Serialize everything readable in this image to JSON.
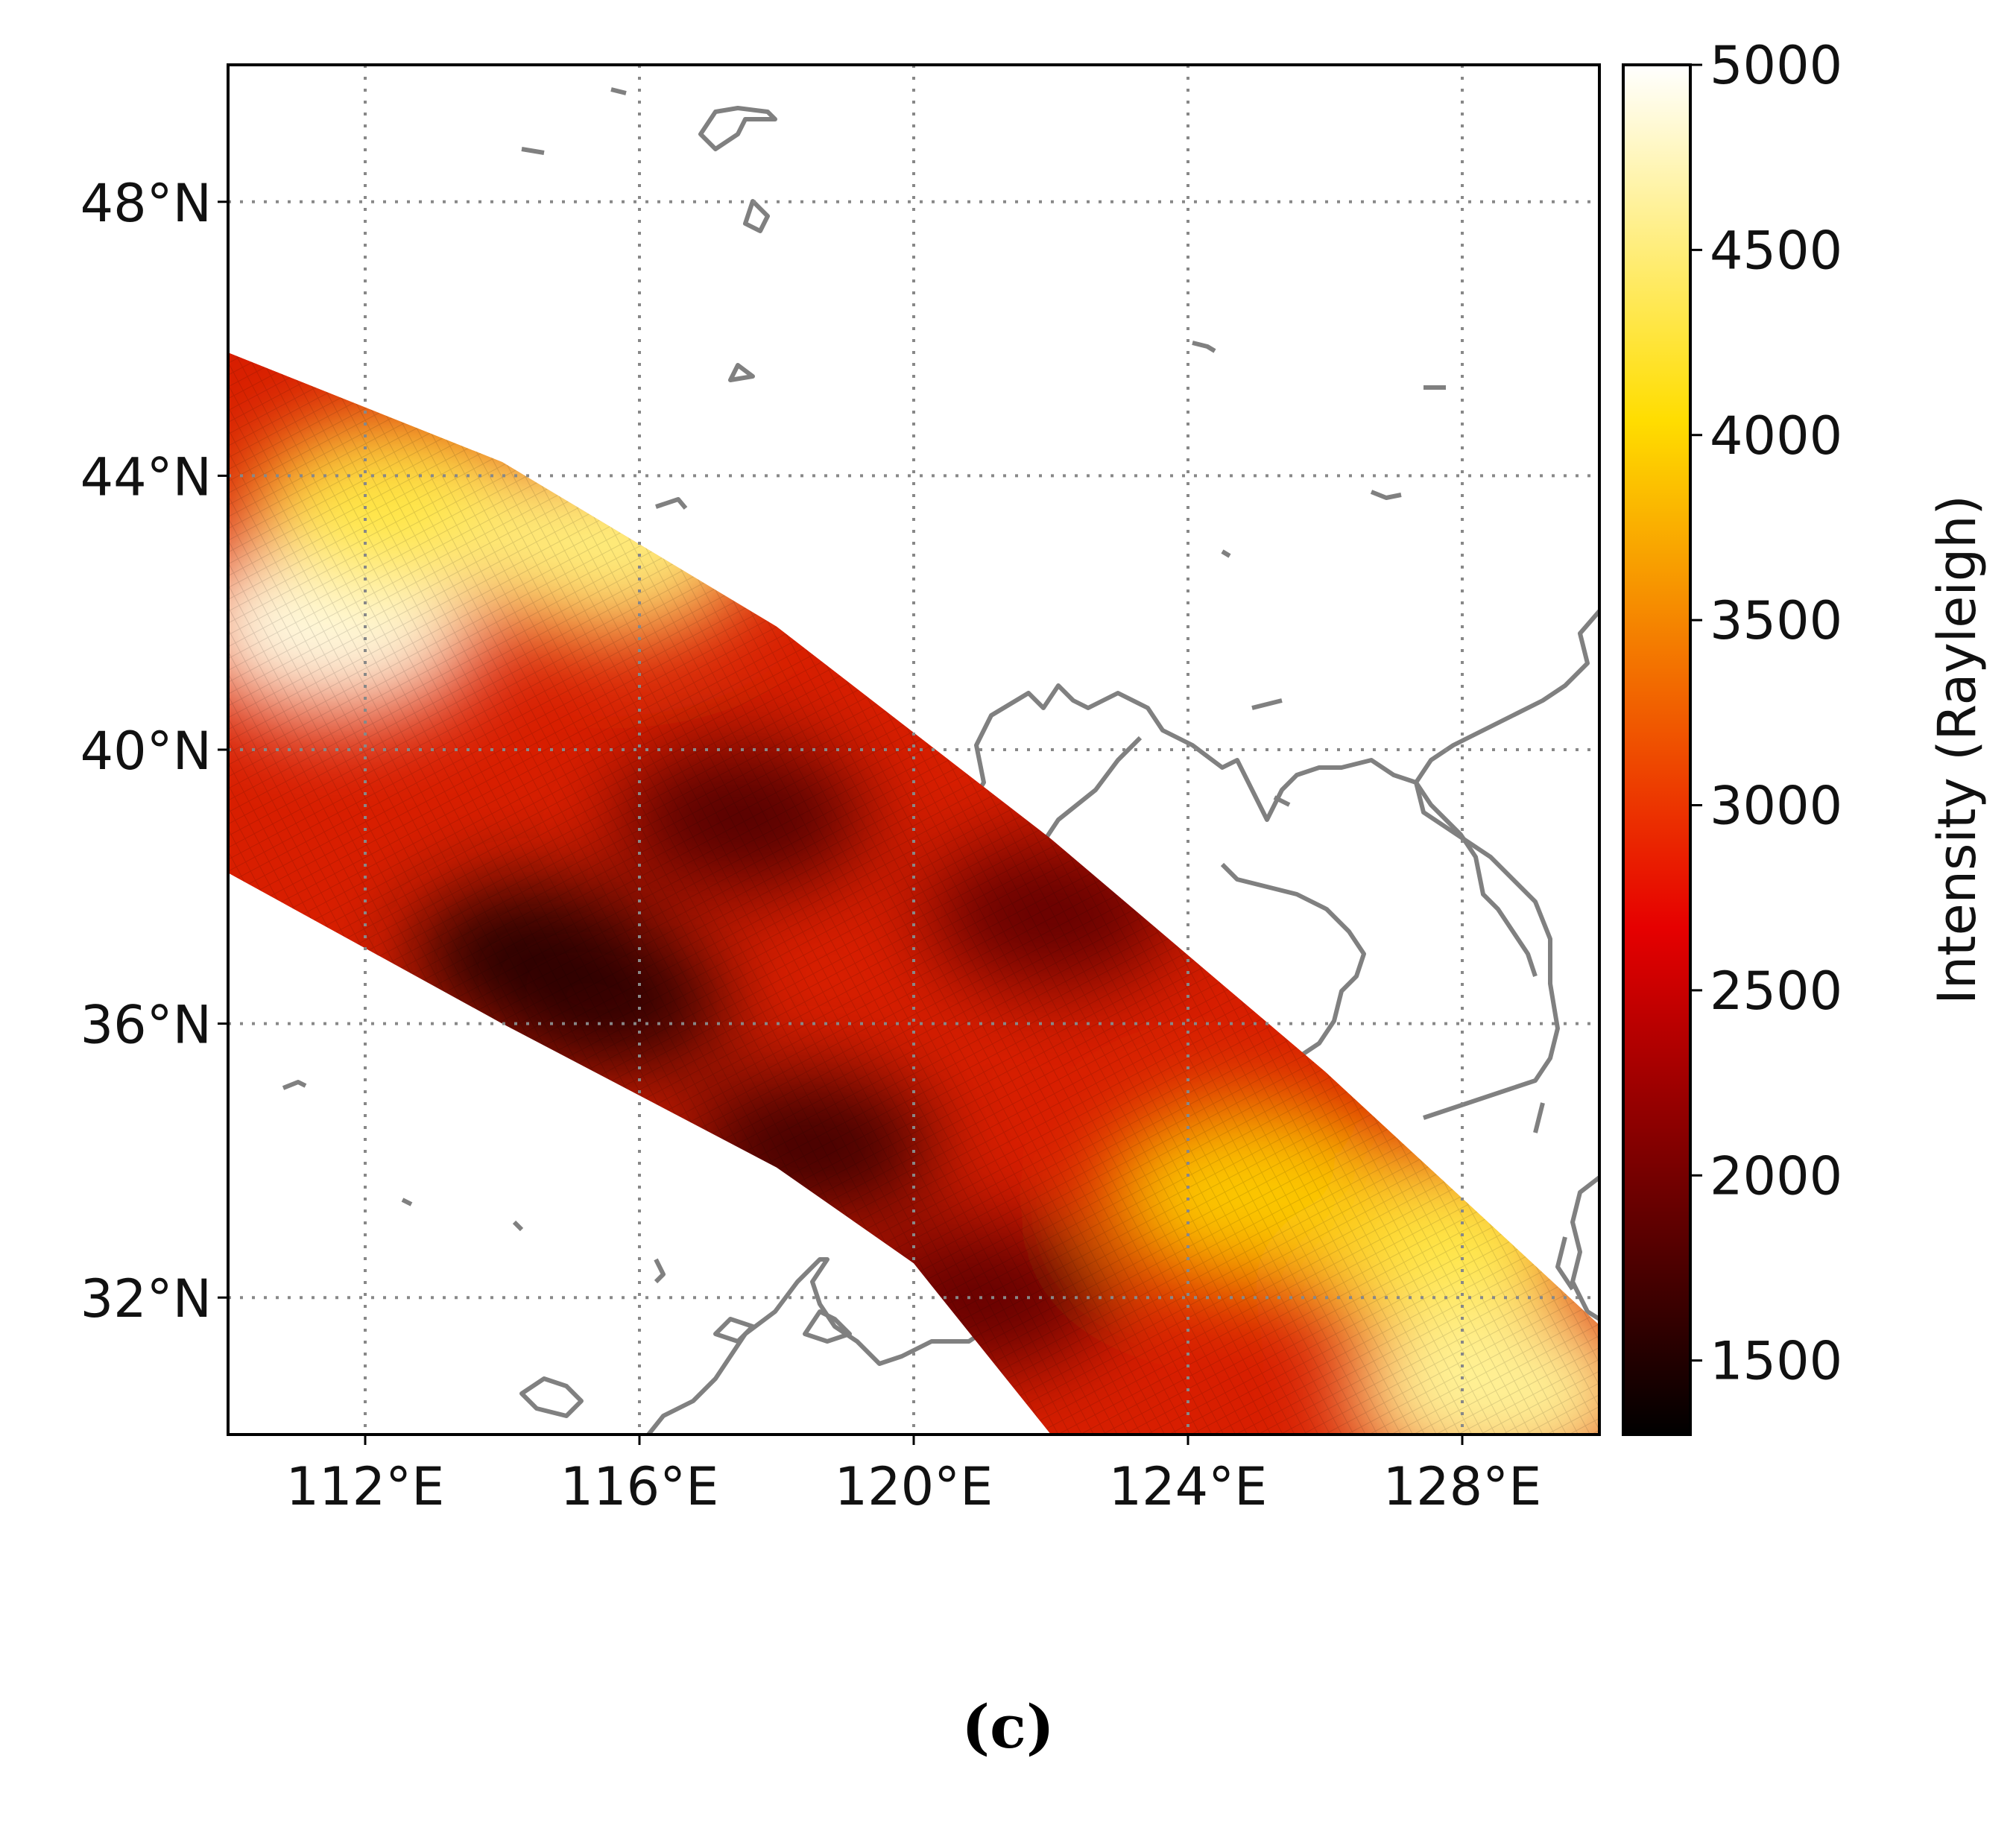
{
  "chart_data": {
    "type": "heatmap",
    "title": "",
    "description_type": "satellite swath intensity map",
    "lon_range": [
      110,
      130
    ],
    "lat_range": [
      30,
      50
    ],
    "xticks": [
      112,
      116,
      120,
      124,
      128
    ],
    "yticks": [
      32,
      36,
      40,
      44,
      48
    ],
    "xtick_labels": [
      "112°E",
      "116°E",
      "120°E",
      "124°E",
      "128°E"
    ],
    "ytick_labels": [
      "32°N",
      "36°N",
      "40°N",
      "44°N",
      "48°N"
    ],
    "gridlines": true,
    "colormap": "hot",
    "colorbar": {
      "label": "Intensity (Rayleigh)",
      "range": [
        1300,
        5000
      ],
      "ticks": [
        1500,
        2000,
        2500,
        3000,
        3500,
        4000,
        4500,
        5000
      ],
      "tick_labels": [
        "1500",
        "2000",
        "2500",
        "3000",
        "3500",
        "4000",
        "4500",
        "5000"
      ]
    },
    "swath": {
      "north_edge": [
        [
          110,
          45.8
        ],
        [
          114,
          44.2
        ],
        [
          118,
          41.8
        ],
        [
          122,
          38.7
        ],
        [
          126,
          35.3
        ],
        [
          130,
          31.6
        ]
      ],
      "south_edge": [
        [
          110,
          38.2
        ],
        [
          114,
          36.0
        ],
        [
          118,
          33.9
        ],
        [
          120,
          32.5
        ],
        [
          122,
          30.0
        ]
      ],
      "hotspots": [
        {
          "lon": 111.5,
          "lat": 41.8,
          "value": 4900
        },
        {
          "lon": 112.5,
          "lat": 43.5,
          "value": 4300
        },
        {
          "lon": 115.5,
          "lat": 43.0,
          "value": 4500
        },
        {
          "lon": 127.5,
          "lat": 32.8,
          "value": 4300
        },
        {
          "lon": 128.5,
          "lat": 30.6,
          "value": 4600
        },
        {
          "lon": 125.0,
          "lat": 33.5,
          "value": 3900
        }
      ],
      "coldspots": [
        {
          "lon": 114.5,
          "lat": 37.0,
          "value": 1500
        },
        {
          "lon": 115.5,
          "lat": 36.3,
          "value": 1600
        },
        {
          "lon": 118.5,
          "lat": 34.2,
          "value": 1700
        },
        {
          "lon": 117.5,
          "lat": 39.0,
          "value": 1800
        },
        {
          "lon": 122.0,
          "lat": 37.6,
          "value": 1900
        },
        {
          "lon": 121.0,
          "lat": 32.0,
          "value": 1900
        }
      ]
    }
  },
  "panel_label": "(c)",
  "colors": {
    "coastline": "#808080",
    "grid": "#888888"
  }
}
